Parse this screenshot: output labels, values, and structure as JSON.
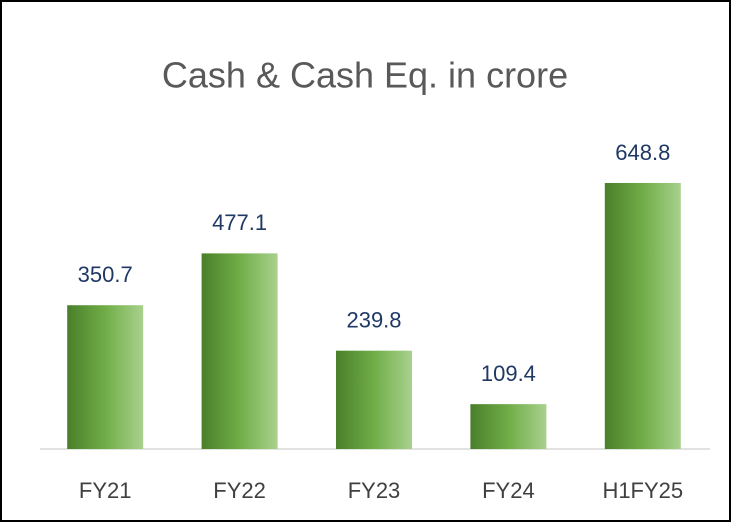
{
  "chart_data": {
    "type": "bar",
    "title": "Cash & Cash Eq.  in crore",
    "categories": [
      "FY21",
      "FY22",
      "FY23",
      "FY24",
      "H1FY25"
    ],
    "values": [
      350.7,
      477.1,
      239.8,
      109.4,
      648.8
    ]
  }
}
